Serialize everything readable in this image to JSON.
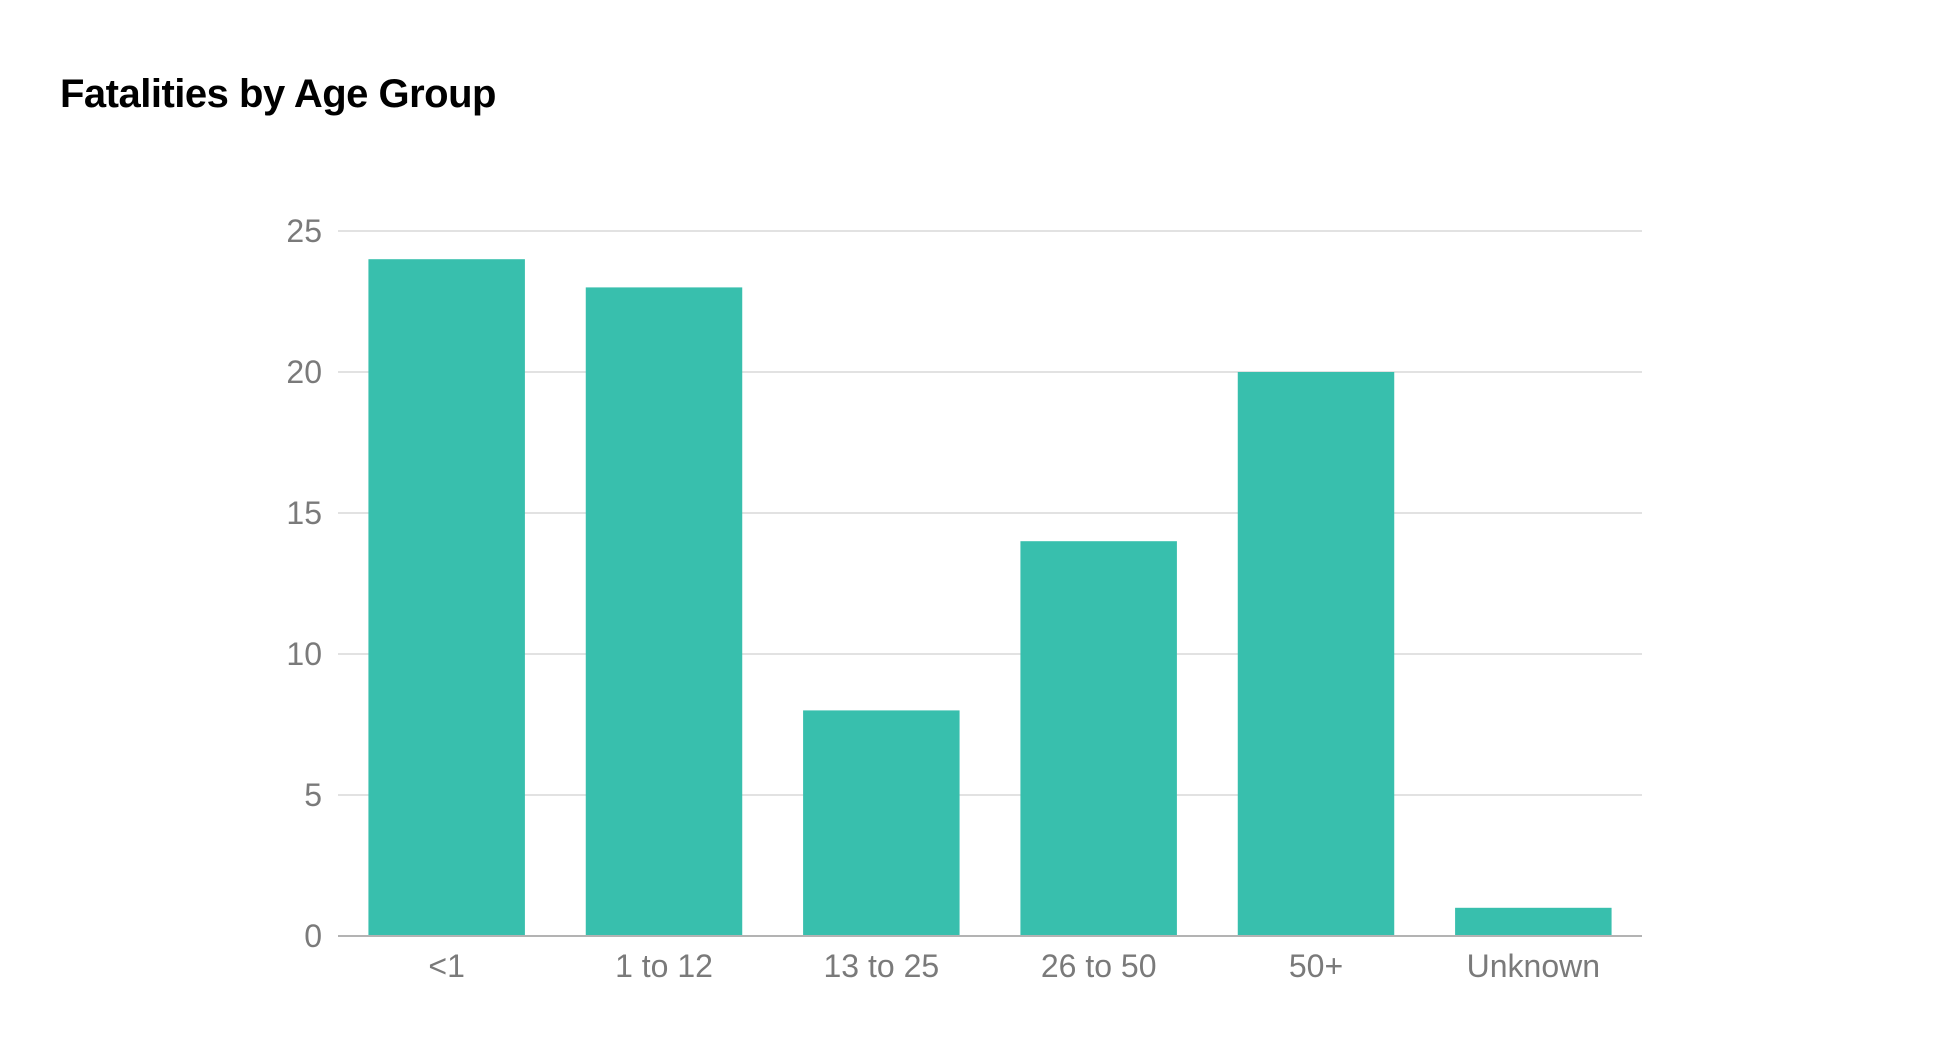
{
  "chart_data": {
    "type": "bar",
    "title": "Fatalities by Age Group",
    "xlabel": "",
    "ylabel": "",
    "categories": [
      "<1",
      "1 to 12",
      "13 to 25",
      "26 to 50",
      "50+",
      "Unknown"
    ],
    "values": [
      24,
      23,
      8,
      14,
      20,
      1
    ],
    "ylim": [
      0,
      25
    ],
    "yticks": [
      "0",
      "5",
      "10",
      "15",
      "20",
      "25"
    ],
    "grid": true,
    "legend": "none",
    "colors": {
      "bar": "#38bfad",
      "grid": "#d9d9d9",
      "axis": "#b3b3b3",
      "tick_text": "#7a7a7a",
      "title": "#000000"
    }
  }
}
